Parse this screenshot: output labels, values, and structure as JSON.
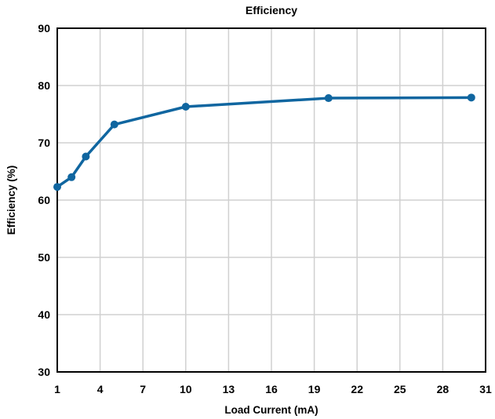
{
  "chart_data": {
    "type": "line",
    "title": "Efficiency",
    "xlabel": "Load Current (mA)",
    "ylabel": "Efficiency (%)",
    "xlim": [
      1,
      31
    ],
    "ylim": [
      30,
      90
    ],
    "xticks": [
      1,
      4,
      7,
      10,
      13,
      16,
      19,
      22,
      25,
      28,
      31
    ],
    "yticks": [
      30,
      40,
      50,
      60,
      70,
      80,
      90
    ],
    "grid": true,
    "color": "#1066a0",
    "series": [
      {
        "x": [
          1,
          2,
          3,
          5,
          10,
          20,
          30
        ],
        "y": [
          62.3,
          64.0,
          67.6,
          73.2,
          76.3,
          77.8,
          77.9
        ]
      }
    ]
  }
}
